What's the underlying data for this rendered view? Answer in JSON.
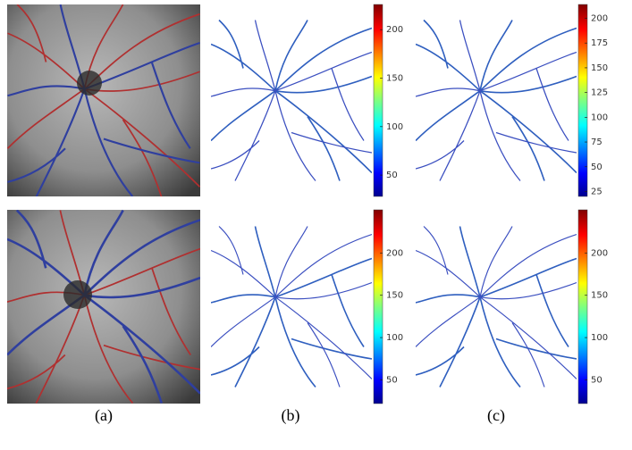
{
  "figure": {
    "labels": [
      "(a)",
      "(b)",
      "(c)"
    ],
    "rows": [
      {
        "colorbars": [
          {
            "lim": [
              28,
              226
            ],
            "ticks": [
              50,
              100,
              150,
              200
            ]
          },
          {
            "lim": [
              20,
              214
            ],
            "ticks": [
              25,
              50,
              75,
              100,
              125,
              150,
              175,
              200
            ]
          }
        ]
      },
      {
        "colorbars": [
          {
            "lim": [
              22,
              251
            ],
            "ticks": [
              50,
              100,
              150,
              200
            ]
          },
          {
            "lim": [
              22,
              251
            ],
            "ticks": [
              50,
              100,
              150,
              200
            ]
          }
        ]
      }
    ]
  }
}
